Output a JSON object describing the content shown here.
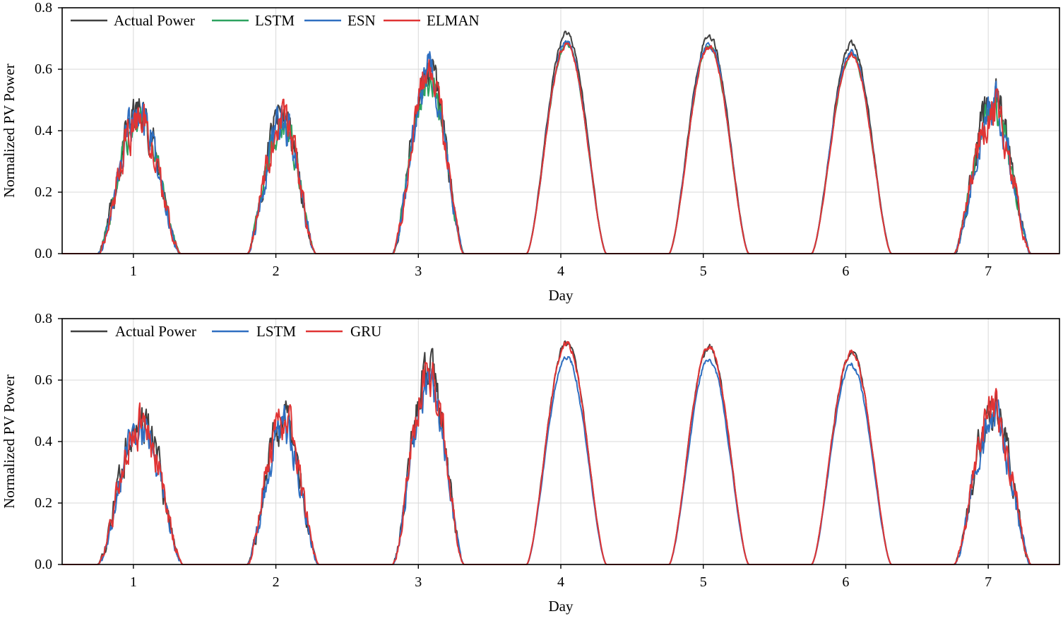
{
  "chart_data": [
    {
      "type": "line",
      "xlabel": "Day",
      "ylabel": "Normalized PV Power",
      "xlim": [
        0.5,
        7.5
      ],
      "ylim": [
        0.0,
        0.8
      ],
      "x_ticks": [
        1,
        2,
        3,
        4,
        5,
        6,
        7
      ],
      "x_tick_labels": [
        "1",
        "2",
        "3",
        "4",
        "5",
        "6",
        "7"
      ],
      "y_ticks": [
        0.0,
        0.2,
        0.4,
        0.6,
        0.8
      ],
      "y_tick_labels": [
        "0.0",
        "0.2",
        "0.4",
        "0.6",
        "0.8"
      ],
      "grid": true,
      "legend_position": "top-left",
      "days": [
        {
          "day": 1,
          "start": 0.75,
          "end": 1.33,
          "peak": 0.46
        },
        {
          "day": 2,
          "start": 1.8,
          "end": 2.28,
          "peak": 0.45
        },
        {
          "day": 3,
          "start": 2.82,
          "end": 3.32,
          "peak": 0.6
        },
        {
          "day": 4,
          "start": 3.76,
          "end": 4.32,
          "peak": 0.72
        },
        {
          "day": 5,
          "start": 4.76,
          "end": 5.32,
          "peak": 0.71
        },
        {
          "day": 6,
          "start": 5.76,
          "end": 6.32,
          "peak": 0.68
        },
        {
          "day": 7,
          "start": 6.76,
          "end": 7.3,
          "peak": 0.5
        }
      ],
      "series": [
        {
          "name": "Actual Power",
          "color": "#404040",
          "scale": 1.0,
          "noise": 0.05,
          "seed": 11
        },
        {
          "name": "LSTM",
          "color": "#2ca25f",
          "scale": 0.95,
          "noise": 0.04,
          "seed": 23
        },
        {
          "name": "ESN",
          "color": "#2f6fc1",
          "scale": 0.96,
          "noise": 0.05,
          "seed": 37
        },
        {
          "name": "ELMAN",
          "color": "#e03434",
          "scale": 0.95,
          "noise": 0.05,
          "seed": 51
        }
      ]
    },
    {
      "type": "line",
      "xlabel": "Day",
      "ylabel": "Normalized PV Power",
      "xlim": [
        0.5,
        7.5
      ],
      "ylim": [
        0.0,
        0.8
      ],
      "x_ticks": [
        1,
        2,
        3,
        4,
        5,
        6,
        7
      ],
      "x_tick_labels": [
        "1",
        "2",
        "3",
        "4",
        "5",
        "6",
        "7"
      ],
      "y_ticks": [
        0.0,
        0.2,
        0.4,
        0.6,
        0.8
      ],
      "y_tick_labels": [
        "0.0",
        "0.2",
        "0.4",
        "0.6",
        "0.8"
      ],
      "grid": true,
      "legend_position": "top-left",
      "days": [
        {
          "day": 1,
          "start": 0.75,
          "end": 1.35,
          "peak": 0.46
        },
        {
          "day": 2,
          "start": 1.8,
          "end": 2.3,
          "peak": 0.47
        },
        {
          "day": 3,
          "start": 2.82,
          "end": 3.32,
          "peak": 0.62
        },
        {
          "day": 4,
          "start": 3.76,
          "end": 4.32,
          "peak": 0.72
        },
        {
          "day": 5,
          "start": 4.76,
          "end": 5.32,
          "peak": 0.71
        },
        {
          "day": 6,
          "start": 5.76,
          "end": 6.32,
          "peak": 0.69
        },
        {
          "day": 7,
          "start": 6.76,
          "end": 7.3,
          "peak": 0.5
        }
      ],
      "series": [
        {
          "name": "Actual Power",
          "color": "#404040",
          "scale": 1.0,
          "noise": 0.05,
          "seed": 11
        },
        {
          "name": "LSTM",
          "color": "#2f6fc1",
          "scale": 0.94,
          "noise": 0.045,
          "seed": 67
        },
        {
          "name": "GRU",
          "color": "#e03434",
          "scale": 1.0,
          "noise": 0.05,
          "seed": 79
        }
      ]
    }
  ]
}
